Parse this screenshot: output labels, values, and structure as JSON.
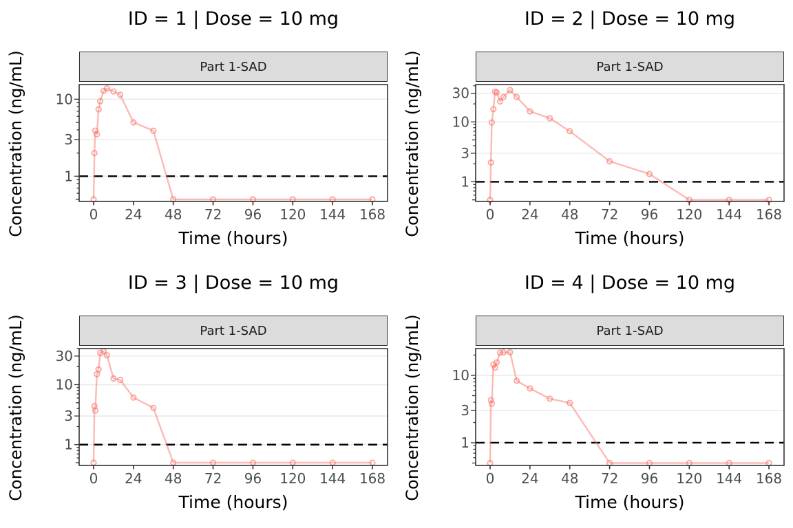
{
  "figure_title": "",
  "strip_label": "Part 1-SAD",
  "axes": {
    "x_title": "Time (hours)",
    "y_title": "Concentration (ng/mL)",
    "x_ticks": [
      0,
      24,
      48,
      72,
      96,
      120,
      144,
      168
    ]
  },
  "style": {
    "series_color": "#F8766D",
    "line_opacity": 0.5,
    "point_opacity": 0.65,
    "point_shape": "open-circle",
    "lloq_line_color": "#000000",
    "lloq_line_style": "dashed",
    "grid_color": "#E8E8E8",
    "panel_border_color": "#333333",
    "strip_fill": "#DCDCDC",
    "tick_color": "#333333",
    "tick_label_color": "#4d4d4d",
    "title_color": "#000000",
    "panel_background": "#ffffff"
  },
  "chart_data": [
    {
      "type": "line",
      "id": 1,
      "title": "ID = 1 | Dose = 10 mg",
      "strip": "Part 1-SAD",
      "xlabel": "Time (hours)",
      "ylabel": "Concentration (ng/mL)",
      "x": [
        0,
        0.5,
        1,
        2,
        3,
        4,
        6,
        8,
        12,
        16,
        24,
        36,
        48,
        72,
        96,
        120,
        144,
        168
      ],
      "y": [
        0.5,
        2.0,
        3.9,
        3.5,
        7.4,
        9.4,
        12.8,
        13.8,
        12.6,
        11.4,
        5.0,
        3.9,
        0.5,
        0.5,
        0.5,
        0.5,
        0.5,
        0.5
      ],
      "y_ticks": [
        1,
        3,
        10
      ],
      "x_ticks": [
        0,
        24,
        48,
        72,
        96,
        120,
        144,
        168
      ],
      "ylim": [
        0.47,
        15.5
      ],
      "yscale": "log10",
      "lloq": 1
    },
    {
      "type": "line",
      "id": 2,
      "title": "ID = 2 | Dose = 10 mg",
      "strip": "Part 1-SAD",
      "xlabel": "Time (hours)",
      "ylabel": "Concentration (ng/mL)",
      "x": [
        0,
        0.5,
        1,
        2,
        3,
        4,
        6,
        8,
        12,
        16,
        24,
        36,
        48,
        72,
        96,
        120,
        144,
        168
      ],
      "y": [
        0.5,
        2.1,
        9.8,
        16.3,
        32,
        31,
        22,
        26,
        34,
        26,
        15,
        11.5,
        7.0,
        2.2,
        1.35,
        0.5,
        0.5,
        0.5
      ],
      "y_ticks": [
        1,
        3,
        10,
        30
      ],
      "x_ticks": [
        0,
        24,
        48,
        72,
        96,
        120,
        144,
        168
      ],
      "ylim": [
        0.47,
        42
      ],
      "yscale": "log10",
      "lloq": 1
    },
    {
      "type": "line",
      "id": 3,
      "title": "ID = 3 | Dose = 10 mg",
      "strip": "Part 1-SAD",
      "xlabel": "Time (hours)",
      "ylabel": "Concentration (ng/mL)",
      "x": [
        0,
        0.5,
        1,
        2,
        3,
        4,
        6,
        8,
        12,
        16,
        24,
        36,
        48,
        72,
        96,
        120,
        144,
        168
      ],
      "y": [
        0.5,
        4.4,
        3.7,
        15,
        18,
        34,
        36,
        31,
        12.7,
        12.0,
        6.1,
        4.1,
        0.5,
        0.5,
        0.5,
        0.5,
        0.5,
        0.5
      ],
      "y_ticks": [
        1,
        3,
        10,
        30
      ],
      "x_ticks": [
        0,
        24,
        48,
        72,
        96,
        120,
        144,
        168
      ],
      "ylim": [
        0.45,
        40
      ],
      "yscale": "log10",
      "lloq": 1
    },
    {
      "type": "line",
      "id": 4,
      "title": "ID = 4 | Dose = 10 mg",
      "strip": "Part 1-SAD",
      "xlabel": "Time (hours)",
      "ylabel": "Concentration (ng/mL)",
      "x": [
        0,
        0.5,
        1,
        2,
        3,
        4,
        6,
        8,
        12,
        16,
        24,
        36,
        48,
        72,
        96,
        120,
        144,
        168
      ],
      "y": [
        0.5,
        4.3,
        3.8,
        14.5,
        13.0,
        15.6,
        21.7,
        21.9,
        22.0,
        8.3,
        6.4,
        4.5,
        3.9,
        0.5,
        0.5,
        0.5,
        0.5,
        0.5
      ],
      "y_ticks": [
        1,
        3,
        10
      ],
      "x_ticks": [
        0,
        24,
        48,
        72,
        96,
        120,
        144,
        168
      ],
      "ylim": [
        0.46,
        25
      ],
      "yscale": "log10",
      "lloq": 1
    }
  ]
}
